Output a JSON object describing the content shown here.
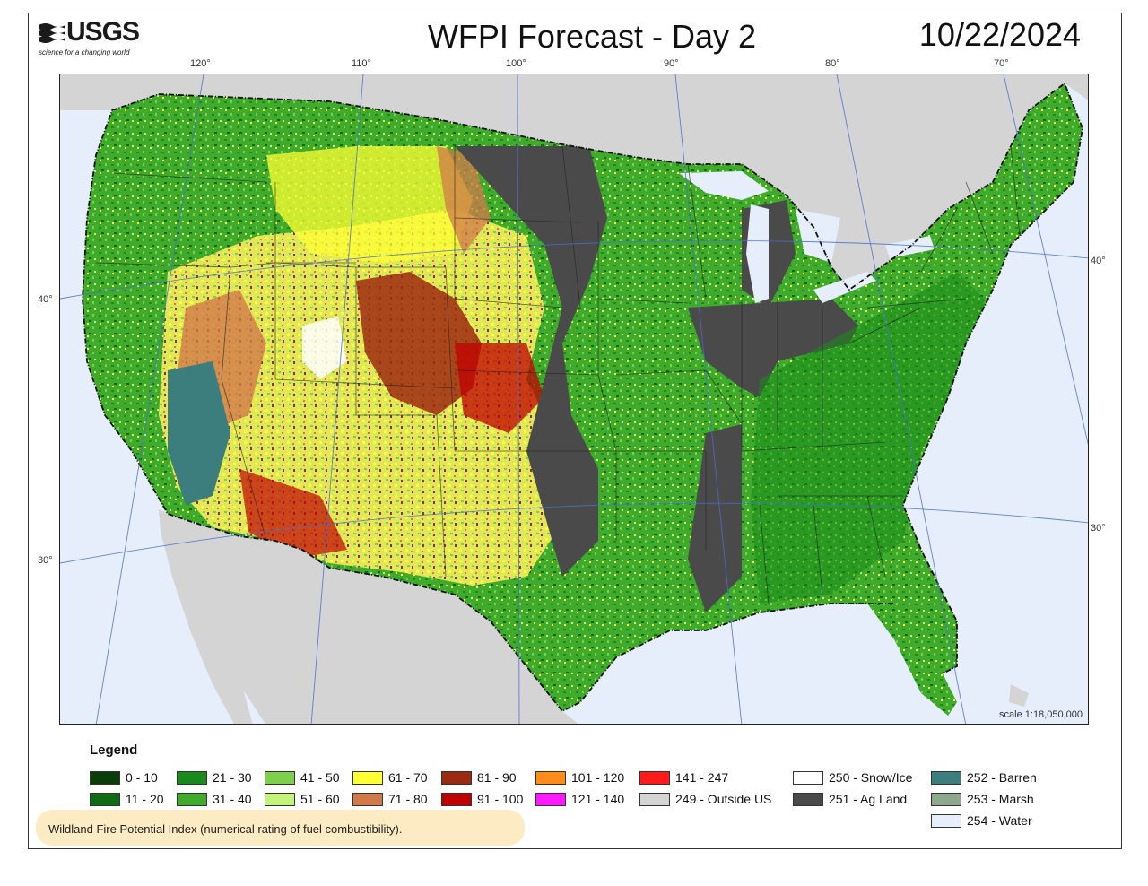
{
  "header": {
    "logo_text": "USGS",
    "logo_tagline": "science for a changing world",
    "title": "WFPI Forecast - Day 2",
    "date": "10/22/2024"
  },
  "map": {
    "longitude_labels": [
      "120°",
      "110°",
      "100°",
      "90°",
      "80°",
      "70°"
    ],
    "latitude_labels_left": [
      "40°",
      "30°"
    ],
    "latitude_labels_right": [
      "40°",
      "30°"
    ],
    "scale": "scale 1:18,050,000"
  },
  "legend": {
    "title": "Legend",
    "items": [
      {
        "label": "0 - 10",
        "color": "#0b3d0b"
      },
      {
        "label": "11 - 20",
        "color": "#0f6b14"
      },
      {
        "label": "21 - 30",
        "color": "#1a8a1c"
      },
      {
        "label": "31 - 40",
        "color": "#3faa2c"
      },
      {
        "label": "41 - 50",
        "color": "#7ed04a"
      },
      {
        "label": "51 - 60",
        "color": "#c4f27a"
      },
      {
        "label": "61 - 70",
        "color": "#ffff33"
      },
      {
        "label": "71 - 80",
        "color": "#d2794a"
      },
      {
        "label": "81 - 90",
        "color": "#9c2a10"
      },
      {
        "label": "91 - 100",
        "color": "#c00000"
      },
      {
        "label": "101 - 120",
        "color": "#ff8c1a"
      },
      {
        "label": "121 - 140",
        "color": "#ff1aff"
      },
      {
        "label": "141 - 247",
        "color": "#ff1a1a"
      },
      {
        "label": "249 - Outside US",
        "color": "#d4d4d4"
      },
      {
        "label": "250 - Snow/Ice",
        "color": "#ffffff"
      },
      {
        "label": "251 - Ag Land",
        "color": "#4a4a4a"
      },
      {
        "label": "252 - Barren",
        "color": "#3c7d7d"
      },
      {
        "label": "253 - Marsh",
        "color": "#8ea88e"
      },
      {
        "label": "254 - Water",
        "color": "#e6eefb"
      }
    ]
  },
  "caption": "Wildland Fire Potential Index (numerical rating of fuel combustibility)."
}
